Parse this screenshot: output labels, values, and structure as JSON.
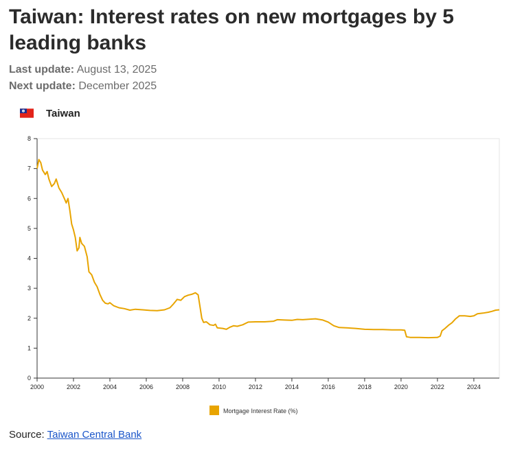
{
  "header": {
    "title": "Taiwan: Interest rates on new mortgages by 5 leading banks",
    "last_update_label": "Last update:",
    "last_update_value": "August 13, 2025",
    "next_update_label": "Next update:",
    "next_update_value": "December 2025"
  },
  "country": {
    "name": "Taiwan",
    "flag_icon": "taiwan-flag-icon"
  },
  "source": {
    "label": "Source:",
    "link_text": "Taiwan Central Bank"
  },
  "colors": {
    "series": "#e8a400",
    "link": "#1a55c9",
    "axis": "#333333"
  },
  "chart_data": {
    "type": "line",
    "title": "",
    "xlabel": "",
    "ylabel": "",
    "xlim": [
      2000,
      2025.4
    ],
    "ylim": [
      0,
      8
    ],
    "x_ticks": [
      2000,
      2002,
      2004,
      2006,
      2008,
      2010,
      2012,
      2014,
      2016,
      2018,
      2020,
      2022,
      2024
    ],
    "y_ticks": [
      0,
      1,
      2,
      3,
      4,
      5,
      6,
      7,
      8
    ],
    "grid": false,
    "legend_position": "bottom-center",
    "series": [
      {
        "name": "Mortgage Interest Rate (%)",
        "points": [
          [
            2000.0,
            7.0
          ],
          [
            2000.1,
            7.3
          ],
          [
            2000.2,
            7.2
          ],
          [
            2000.3,
            6.95
          ],
          [
            2000.45,
            6.8
          ],
          [
            2000.55,
            6.9
          ],
          [
            2000.65,
            6.65
          ],
          [
            2000.8,
            6.4
          ],
          [
            2000.95,
            6.5
          ],
          [
            2001.05,
            6.65
          ],
          [
            2001.2,
            6.35
          ],
          [
            2001.35,
            6.2
          ],
          [
            2001.5,
            6.0
          ],
          [
            2001.6,
            5.85
          ],
          [
            2001.7,
            6.0
          ],
          [
            2001.8,
            5.6
          ],
          [
            2001.9,
            5.15
          ],
          [
            2002.0,
            4.95
          ],
          [
            2002.1,
            4.7
          ],
          [
            2002.2,
            4.25
          ],
          [
            2002.3,
            4.35
          ],
          [
            2002.35,
            4.7
          ],
          [
            2002.45,
            4.5
          ],
          [
            2002.6,
            4.4
          ],
          [
            2002.75,
            4.05
          ],
          [
            2002.85,
            3.55
          ],
          [
            2003.0,
            3.45
          ],
          [
            2003.15,
            3.2
          ],
          [
            2003.3,
            3.05
          ],
          [
            2003.45,
            2.8
          ],
          [
            2003.6,
            2.6
          ],
          [
            2003.75,
            2.5
          ],
          [
            2003.9,
            2.48
          ],
          [
            2004.0,
            2.52
          ],
          [
            2004.2,
            2.42
          ],
          [
            2004.5,
            2.35
          ],
          [
            2004.8,
            2.32
          ],
          [
            2005.1,
            2.27
          ],
          [
            2005.4,
            2.3
          ],
          [
            2005.8,
            2.28
          ],
          [
            2006.2,
            2.26
          ],
          [
            2006.6,
            2.25
          ],
          [
            2007.0,
            2.28
          ],
          [
            2007.3,
            2.35
          ],
          [
            2007.5,
            2.48
          ],
          [
            2007.7,
            2.63
          ],
          [
            2007.9,
            2.6
          ],
          [
            2008.1,
            2.72
          ],
          [
            2008.3,
            2.77
          ],
          [
            2008.5,
            2.8
          ],
          [
            2008.7,
            2.85
          ],
          [
            2008.85,
            2.78
          ],
          [
            2008.95,
            2.4
          ],
          [
            2009.05,
            2.0
          ],
          [
            2009.15,
            1.86
          ],
          [
            2009.3,
            1.88
          ],
          [
            2009.5,
            1.78
          ],
          [
            2009.7,
            1.76
          ],
          [
            2009.8,
            1.8
          ],
          [
            2009.9,
            1.68
          ],
          [
            2010.2,
            1.66
          ],
          [
            2010.4,
            1.63
          ],
          [
            2010.6,
            1.7
          ],
          [
            2010.8,
            1.75
          ],
          [
            2011.0,
            1.73
          ],
          [
            2011.3,
            1.78
          ],
          [
            2011.6,
            1.87
          ],
          [
            2012.0,
            1.88
          ],
          [
            2012.5,
            1.88
          ],
          [
            2013.0,
            1.9
          ],
          [
            2013.2,
            1.95
          ],
          [
            2013.6,
            1.94
          ],
          [
            2014.0,
            1.93
          ],
          [
            2014.3,
            1.96
          ],
          [
            2014.6,
            1.95
          ],
          [
            2015.0,
            1.97
          ],
          [
            2015.3,
            1.98
          ],
          [
            2015.7,
            1.94
          ],
          [
            2016.0,
            1.87
          ],
          [
            2016.3,
            1.75
          ],
          [
            2016.6,
            1.69
          ],
          [
            2017.0,
            1.68
          ],
          [
            2017.5,
            1.66
          ],
          [
            2018.0,
            1.63
          ],
          [
            2018.5,
            1.62
          ],
          [
            2019.0,
            1.62
          ],
          [
            2019.5,
            1.61
          ],
          [
            2020.0,
            1.61
          ],
          [
            2020.2,
            1.6
          ],
          [
            2020.3,
            1.38
          ],
          [
            2020.5,
            1.36
          ],
          [
            2021.0,
            1.36
          ],
          [
            2021.5,
            1.35
          ],
          [
            2022.0,
            1.36
          ],
          [
            2022.15,
            1.4
          ],
          [
            2022.25,
            1.58
          ],
          [
            2022.4,
            1.65
          ],
          [
            2022.6,
            1.76
          ],
          [
            2022.8,
            1.85
          ],
          [
            2023.0,
            1.98
          ],
          [
            2023.2,
            2.08
          ],
          [
            2023.5,
            2.08
          ],
          [
            2023.8,
            2.06
          ],
          [
            2024.0,
            2.08
          ],
          [
            2024.2,
            2.15
          ],
          [
            2024.5,
            2.17
          ],
          [
            2024.8,
            2.2
          ],
          [
            2025.0,
            2.23
          ],
          [
            2025.2,
            2.27
          ],
          [
            2025.4,
            2.28
          ]
        ]
      }
    ]
  }
}
